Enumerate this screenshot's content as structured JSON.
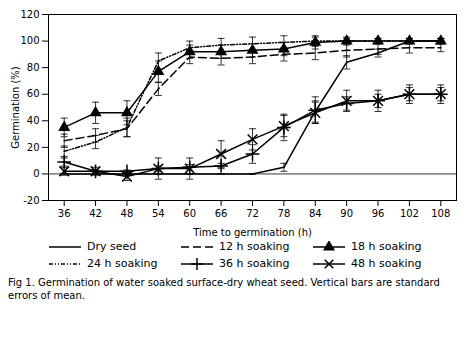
{
  "chart_data": {
    "type": "line",
    "xlabel": "Time to germination (h)",
    "ylabel": "Germination (%)",
    "caption": "Fig 1.  Germination of water soaked surface-dry wheat seed. Vertical bars are standard errors of mean.",
    "x": [
      36,
      42,
      48,
      54,
      60,
      66,
      72,
      78,
      84,
      90,
      96,
      102,
      108
    ],
    "series": [
      {
        "name": "Dry seed",
        "color": "black",
        "line_style": "solid",
        "values": [
          0,
          0,
          0,
          0,
          0,
          0,
          0,
          5,
          47,
          84,
          91,
          100,
          100
        ],
        "errors": [
          0,
          0,
          0,
          0,
          0,
          0,
          0,
          3,
          8,
          5,
          3,
          2,
          2
        ]
      },
      {
        "name": "12 h soaking",
        "color": "black",
        "line_style": "dashed",
        "values": [
          25,
          29,
          34,
          64,
          88,
          87,
          88,
          90,
          91,
          93,
          94,
          95,
          95
        ],
        "errors": [
          5,
          5,
          6,
          5,
          5,
          5,
          5,
          5,
          5,
          5,
          4,
          4,
          3
        ]
      },
      {
        "name": "18 h soaking",
        "color": "black",
        "line_style": "solid",
        "marker": "triangle",
        "values": [
          35,
          46,
          46,
          77,
          92,
          92,
          93,
          94,
          99,
          100,
          100,
          100,
          100
        ],
        "errors": [
          7,
          8,
          9,
          8,
          5,
          5,
          5,
          5,
          5,
          3,
          2,
          2,
          2
        ]
      },
      {
        "name": "24 h soaking",
        "color": "black",
        "line_style": "dashdotdot",
        "values": [
          17,
          24,
          35,
          85,
          95,
          97,
          98,
          99,
          100,
          100,
          100,
          100,
          100
        ],
        "errors": [
          4,
          5,
          7,
          6,
          5,
          5,
          5,
          5,
          3,
          2,
          2,
          2,
          2
        ]
      },
      {
        "name": "36 h soaking",
        "color": "black",
        "line_style": "solid",
        "marker": "plus",
        "values": [
          9,
          2,
          2,
          4,
          5,
          6,
          15,
          35,
          48,
          53,
          55,
          60,
          60
        ],
        "errors": [
          3,
          1,
          1,
          2,
          2,
          2,
          7,
          10,
          10,
          5,
          5,
          5,
          5
        ]
      },
      {
        "name": "48 h soaking",
        "color": "black",
        "line_style": "solid",
        "marker": "x",
        "values": [
          2,
          2,
          -2,
          4,
          4,
          15,
          26,
          36,
          46,
          55,
          55,
          60,
          60
        ],
        "errors": [
          3,
          3,
          3,
          8,
          8,
          10,
          8,
          8,
          8,
          8,
          8,
          7,
          7
        ]
      }
    ],
    "hlines": [
      0
    ],
    "xlim": [
      33,
      111
    ],
    "xticks": [
      36,
      42,
      48,
      54,
      60,
      66,
      72,
      78,
      84,
      90,
      96,
      102,
      108
    ],
    "ylim": [
      -20,
      120
    ],
    "yticks": [
      -20,
      0,
      20,
      40,
      60,
      80,
      100,
      120
    ],
    "grid": false,
    "legend": "bottom"
  }
}
